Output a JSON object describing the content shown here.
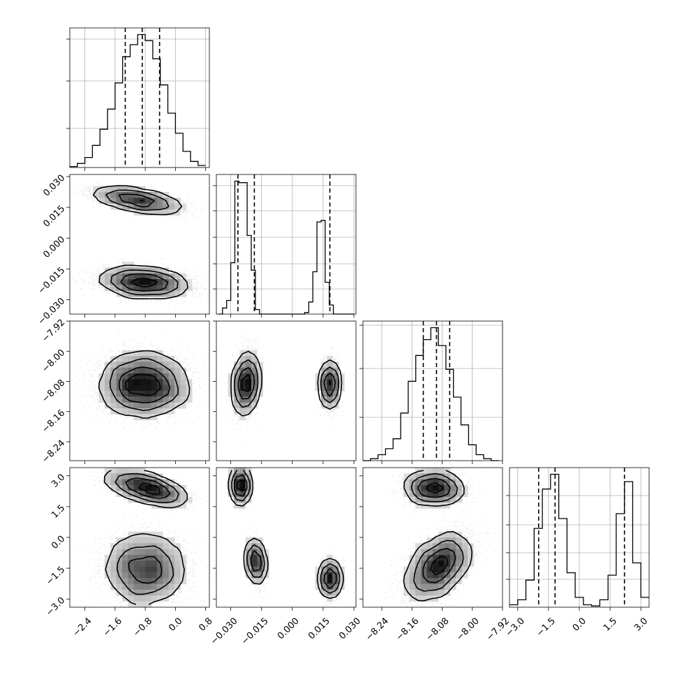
{
  "chart_data": {
    "type": "corner",
    "parameters": [
      {
        "range": [
          -2.8,
          0.9
        ],
        "ticks": [
          -2.4,
          -1.6,
          -0.8,
          0.0,
          0.8
        ],
        "tick_labels": [
          "−2.4",
          "−1.6",
          "−0.8",
          "0.0",
          "0.8"
        ]
      },
      {
        "range": [
          -0.037,
          0.031
        ],
        "ticks": [
          -0.03,
          -0.015,
          0.0,
          0.015,
          0.03
        ],
        "tick_labels": [
          "−0.030",
          "−0.015",
          "0.000",
          "0.015",
          "0.030"
        ]
      },
      {
        "range": [
          -8.29,
          -7.92
        ],
        "ticks": [
          -8.24,
          -8.16,
          -8.08,
          -8.0,
          -7.92
        ],
        "tick_labels": [
          "−8.24",
          "−8.16",
          "−8.08",
          "−8.00",
          "−7.92"
        ]
      },
      {
        "range": [
          -3.4,
          3.4
        ],
        "ticks": [
          -3.0,
          -1.5,
          0.0,
          1.5,
          3.0
        ],
        "tick_labels": [
          "−3.0",
          "−1.5",
          "0.0",
          "1.5",
          "3.0"
        ]
      }
    ],
    "diagonal": [
      {
        "bins": [
          -2.8,
          -2.6,
          -2.4,
          -2.2,
          -2.0,
          -1.8,
          -1.6,
          -1.4,
          -1.2,
          -1.0,
          -0.8,
          -0.6,
          -0.4,
          -0.2,
          0.0,
          0.2,
          0.4,
          0.6,
          0.8
        ],
        "counts": [
          0.5,
          2,
          5,
          11,
          19,
          29,
          42,
          55,
          61,
          66,
          63,
          54,
          41,
          27,
          17,
          8,
          3,
          1
        ],
        "quantiles": [
          -1.33,
          -0.88,
          -0.42
        ],
        "y_ticks": [
          0.28,
          0.62,
          0.92
        ]
      },
      {
        "bins": [
          -0.036,
          -0.034,
          -0.032,
          -0.03,
          -0.028,
          -0.026,
          -0.024,
          -0.022,
          -0.02,
          -0.018,
          -0.016,
          -0.014,
          -0.012,
          -0.01,
          -0.008,
          -0.006,
          -0.004,
          -0.002,
          0.0,
          0.002,
          0.004,
          0.006,
          0.008,
          0.01,
          0.012,
          0.014,
          0.016,
          0.018,
          0.02,
          0.022,
          0.024,
          0.026,
          0.028,
          0.03
        ],
        "counts": [
          0,
          4,
          9,
          34,
          88,
          87,
          87,
          52,
          29,
          3,
          0,
          0,
          0,
          0,
          0,
          0,
          0,
          0,
          0,
          0,
          0,
          1,
          8,
          28,
          61,
          62,
          21,
          6,
          0,
          0,
          0,
          0,
          0
        ],
        "quantiles": [
          -0.0265,
          -0.0185,
          0.0183
        ],
        "y_ticks": [
          0.18,
          0.36,
          0.55,
          0.74,
          0.92
        ]
      },
      {
        "bins": [
          -8.29,
          -8.27,
          -8.25,
          -8.23,
          -8.21,
          -8.19,
          -8.17,
          -8.15,
          -8.13,
          -8.11,
          -8.09,
          -8.07,
          -8.05,
          -8.03,
          -8.01,
          -7.99,
          -7.97,
          -7.95,
          -7.93
        ],
        "counts": [
          0,
          1,
          3,
          6,
          11,
          24,
          40,
          53,
          61,
          67,
          58,
          46,
          32,
          18,
          8,
          3,
          1,
          0
        ],
        "quantiles": [
          -8.13,
          -8.095,
          -8.06
        ],
        "y_ticks": [
          0.31,
          0.66,
          0.97
        ]
      },
      {
        "bins": [
          -3.4,
          -3.0,
          -2.6,
          -2.2,
          -1.8,
          -1.4,
          -1.0,
          -0.6,
          -0.2,
          0.2,
          0.6,
          1.0,
          1.4,
          1.8,
          2.2,
          2.6,
          3.0,
          3.4
        ],
        "counts": [
          1,
          3,
          11,
          32,
          48,
          54,
          36,
          14,
          4,
          1,
          0.5,
          3,
          13,
          38,
          51,
          18,
          4
        ],
        "quantiles": [
          -1.98,
          -1.18,
          2.2
        ],
        "y_ticks": [
          0.2,
          0.39,
          0.59,
          0.8
        ]
      }
    ],
    "pairs": [
      {
        "row": 1,
        "col": 0,
        "blobs": [
          {
            "cx": -1.0,
            "cy": 0.0185,
            "sx": 0.6,
            "sy": 0.0028,
            "rho": -0.6,
            "n": 3000
          },
          {
            "cx": -0.85,
            "cy": -0.0215,
            "sx": 0.6,
            "sy": 0.0035,
            "rho": -0.25,
            "n": 4500
          }
        ]
      },
      {
        "row": 2,
        "col": 0,
        "blobs": [
          {
            "cx": -0.85,
            "cy": -8.088,
            "sx": 0.6,
            "sy": 0.042,
            "rho": 0.0,
            "n": 6000
          }
        ]
      },
      {
        "row": 2,
        "col": 1,
        "blobs": [
          {
            "cx": -0.0225,
            "cy": -8.085,
            "sx": 0.0031,
            "sy": 0.042,
            "rho": 0.2,
            "n": 3500
          },
          {
            "cx": 0.0182,
            "cy": -8.088,
            "sx": 0.0021,
            "sy": 0.032,
            "rho": 0.0,
            "n": 2000
          }
        ]
      },
      {
        "row": 3,
        "col": 0,
        "blobs": [
          {
            "cx": -0.75,
            "cy": 2.4,
            "sx": 0.55,
            "sy": 0.4,
            "rho": -0.6,
            "n": 2500
          },
          {
            "cx": -0.8,
            "cy": -1.55,
            "sx": 0.55,
            "sy": 0.9,
            "rho": 0.0,
            "n": 4500
          }
        ]
      },
      {
        "row": 3,
        "col": 1,
        "blobs": [
          {
            "cx": -0.0252,
            "cy": 2.5,
            "sx": 0.0017,
            "sy": 0.45,
            "rho": 0.0,
            "n": 1800
          },
          {
            "cx": -0.0178,
            "cy": -1.15,
            "sx": 0.0019,
            "sy": 0.55,
            "rho": -0.2,
            "n": 1800
          },
          {
            "cx": 0.0185,
            "cy": -2.0,
            "sx": 0.0023,
            "sy": 0.45,
            "rho": 0.0,
            "n": 1800
          }
        ]
      },
      {
        "row": 3,
        "col": 2,
        "blobs": [
          {
            "cx": -8.1,
            "cy": 2.4,
            "sx": 0.04,
            "sy": 0.4,
            "rho": 0.0,
            "n": 2500
          },
          {
            "cx": -8.09,
            "cy": -1.4,
            "sx": 0.045,
            "sy": 0.85,
            "rho": 0.45,
            "n": 4500
          }
        ]
      }
    ]
  }
}
